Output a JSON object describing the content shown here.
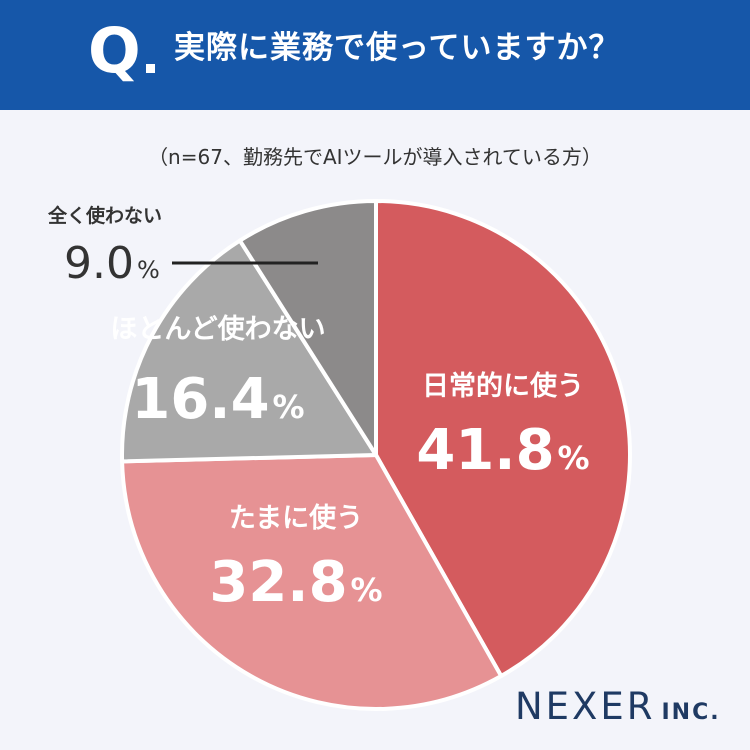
{
  "header": {
    "q_letter": "Q",
    "question": "実際に業務で使っていますか？"
  },
  "subtitle": "（n=67、勤務先でAIツールが導入されている方）",
  "chart_data": {
    "type": "pie",
    "slices": [
      {
        "label": "日常的に使う",
        "value": 41.8,
        "display": "41.8",
        "unit": "%",
        "color": "#d45b5e"
      },
      {
        "label": "たまに使う",
        "value": 32.8,
        "display": "32.8",
        "unit": "%",
        "color": "#e69294"
      },
      {
        "label": "ほとんど使わない",
        "value": 16.4,
        "display": "16.4",
        "unit": "%",
        "color": "#a9a9a9"
      },
      {
        "label": "全く使わない",
        "value": 9.0,
        "display": "9.0",
        "unit": "%",
        "color": "#8c8a8a"
      }
    ]
  },
  "logo": {
    "main": "NEXER",
    "suffix": "INC."
  }
}
